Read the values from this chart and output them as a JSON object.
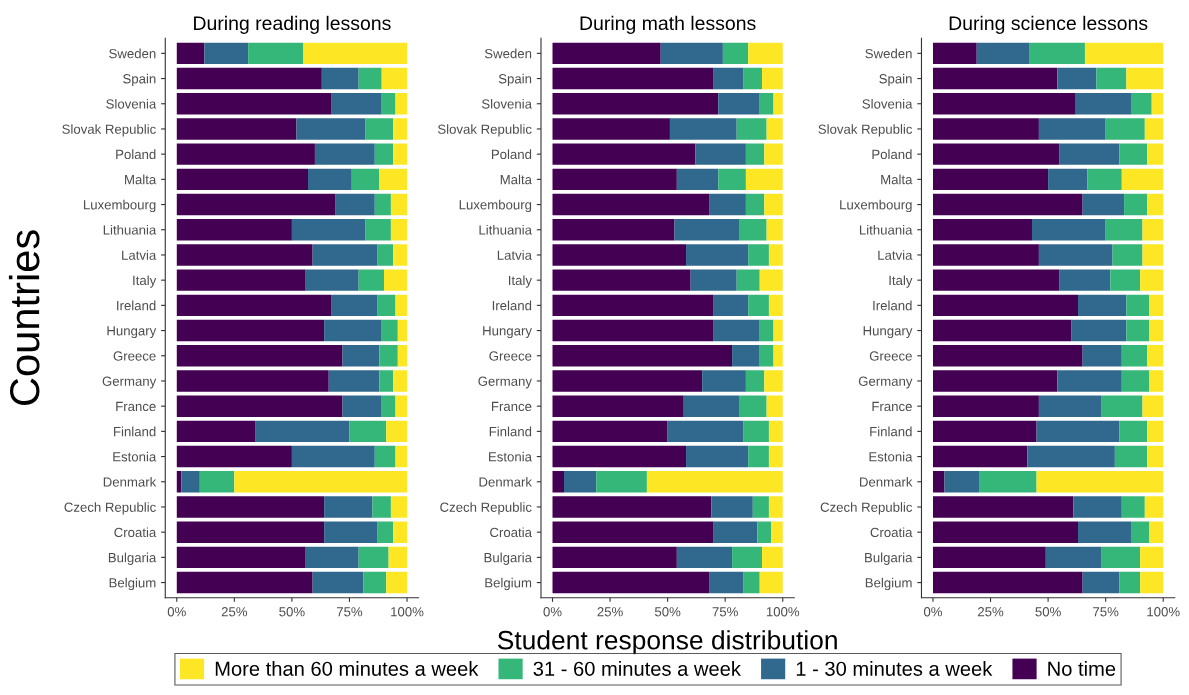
{
  "chart_data": [
    {
      "type": "bar",
      "orientation": "horizontal",
      "stacked": true,
      "title": "During reading lessons",
      "ylabel": "Countries",
      "legend": "bottom",
      "categories": [
        "Sweden",
        "Spain",
        "Slovenia",
        "Slovak Republic",
        "Poland",
        "Malta",
        "Luxembourg",
        "Lithuania",
        "Latvia",
        "Italy",
        "Ireland",
        "Hungary",
        "Greece",
        "Germany",
        "France",
        "Finland",
        "Estonia",
        "Denmark",
        "Czech Republic",
        "Croatia",
        "Bulgaria",
        "Belgium"
      ],
      "xlim": [
        -5,
        105
      ],
      "xticks": [
        {
          "value": 0,
          "label": "0%"
        },
        {
          "value": 25,
          "label": "25%"
        },
        {
          "value": 50,
          "label": "50%"
        },
        {
          "value": 75,
          "label": "75%"
        },
        {
          "value": 100,
          "label": "100%"
        }
      ],
      "series": [
        {
          "name": "No time",
          "color": "#440154",
          "values": [
            12,
            63,
            67,
            52,
            60,
            57,
            69,
            50,
            59,
            56,
            67,
            64,
            72,
            66,
            72,
            34,
            50,
            2,
            64,
            64,
            56,
            59
          ]
        },
        {
          "name": "1 - 30 minutes a week",
          "color": "#31688e",
          "values": [
            19,
            16,
            22,
            30,
            26,
            19,
            17,
            32,
            28,
            23,
            20,
            25,
            16,
            22,
            17,
            41,
            36,
            8,
            21,
            23,
            23,
            22
          ]
        },
        {
          "name": "31 - 60 minutes a week",
          "color": "#35b779",
          "values": [
            24,
            10,
            6,
            12,
            8,
            12,
            7,
            11,
            7,
            11,
            8,
            7,
            8,
            6,
            6,
            16,
            9,
            15,
            8,
            7,
            13,
            10
          ]
        },
        {
          "name": "More than 60 minutes a week",
          "color": "#fde725",
          "values": [
            45,
            11,
            5,
            6,
            6,
            12,
            7,
            7,
            6,
            10,
            5,
            4,
            4,
            6,
            5,
            9,
            5,
            75,
            7,
            6,
            8,
            9
          ]
        }
      ]
    },
    {
      "type": "bar",
      "orientation": "horizontal",
      "stacked": true,
      "title": "During math lessons",
      "xlabel": "Student response distribution",
      "categories": [
        "Sweden",
        "Spain",
        "Slovenia",
        "Slovak Republic",
        "Poland",
        "Malta",
        "Luxembourg",
        "Lithuania",
        "Latvia",
        "Italy",
        "Ireland",
        "Hungary",
        "Greece",
        "Germany",
        "France",
        "Finland",
        "Estonia",
        "Denmark",
        "Czech Republic",
        "Croatia",
        "Bulgaria",
        "Belgium"
      ],
      "xlim": [
        -5,
        105
      ],
      "xticks": [
        {
          "value": 0,
          "label": "0%"
        },
        {
          "value": 25,
          "label": "25%"
        },
        {
          "value": 50,
          "label": "50%"
        },
        {
          "value": 75,
          "label": "75%"
        },
        {
          "value": 100,
          "label": "100%"
        }
      ],
      "series": [
        {
          "color": "#440154",
          "values": [
            47,
            70,
            72,
            51,
            62,
            54,
            68,
            53,
            58,
            60,
            70,
            70,
            78,
            65,
            57,
            50,
            58,
            5,
            69,
            70,
            54,
            68
          ]
        },
        {
          "color": "#31688e",
          "values": [
            27,
            13,
            18,
            29,
            22,
            18,
            16,
            28,
            27,
            20,
            15,
            20,
            12,
            19,
            24,
            33,
            27,
            14,
            18,
            19,
            24,
            15
          ]
        },
        {
          "color": "#35b779",
          "values": [
            11,
            8,
            6,
            13,
            8,
            12,
            8,
            12,
            9,
            10,
            9,
            6,
            6,
            8,
            12,
            11,
            9,
            22,
            7,
            6,
            13,
            7
          ]
        },
        {
          "color": "#fde725",
          "values": [
            15,
            9,
            4,
            7,
            8,
            16,
            8,
            7,
            6,
            10,
            6,
            4,
            4,
            8,
            7,
            6,
            6,
            59,
            6,
            5,
            9,
            10
          ]
        }
      ]
    },
    {
      "type": "bar",
      "orientation": "horizontal",
      "stacked": true,
      "title": "During science lessons",
      "categories": [
        "Sweden",
        "Spain",
        "Slovenia",
        "Slovak Republic",
        "Poland",
        "Malta",
        "Luxembourg",
        "Lithuania",
        "Latvia",
        "Italy",
        "Ireland",
        "Hungary",
        "Greece",
        "Germany",
        "France",
        "Finland",
        "Estonia",
        "Denmark",
        "Czech Republic",
        "Croatia",
        "Bulgaria",
        "Belgium"
      ],
      "xlim": [
        -5,
        105
      ],
      "xticks": [
        {
          "value": 0,
          "label": "0%"
        },
        {
          "value": 25,
          "label": "25%"
        },
        {
          "value": 50,
          "label": "50%"
        },
        {
          "value": 75,
          "label": "75%"
        },
        {
          "value": 100,
          "label": "100%"
        }
      ],
      "series": [
        {
          "color": "#440154",
          "values": [
            19,
            54,
            62,
            46,
            55,
            50,
            65,
            43,
            46,
            55,
            63,
            60,
            65,
            54,
            46,
            45,
            41,
            5,
            61,
            63,
            49,
            65
          ]
        },
        {
          "color": "#31688e",
          "values": [
            23,
            17,
            24,
            29,
            26,
            17,
            18,
            32,
            32,
            22,
            21,
            24,
            17,
            28,
            27,
            36,
            38,
            15,
            21,
            23,
            24,
            16
          ]
        },
        {
          "color": "#35b779",
          "values": [
            24,
            13,
            9,
            17,
            12,
            15,
            10,
            16,
            13,
            13,
            10,
            10,
            11,
            12,
            18,
            12,
            14,
            25,
            10,
            8,
            17,
            9
          ]
        },
        {
          "color": "#fde725",
          "values": [
            34,
            16,
            5,
            8,
            7,
            18,
            7,
            9,
            9,
            10,
            6,
            6,
            7,
            6,
            9,
            7,
            7,
            55,
            8,
            6,
            10,
            10
          ]
        }
      ]
    }
  ]
}
